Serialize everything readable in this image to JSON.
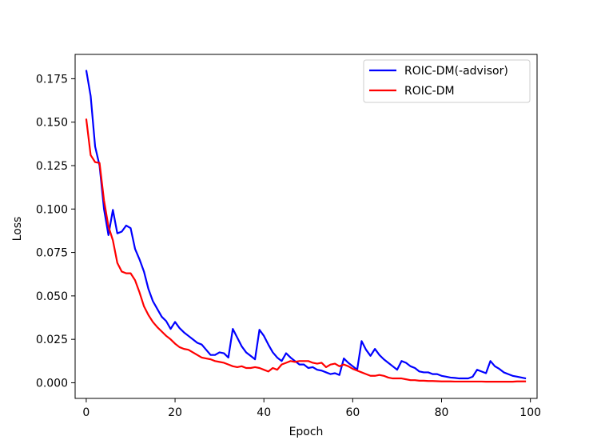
{
  "chart_data": {
    "type": "line",
    "xlabel": "Epoch",
    "ylabel": "Loss",
    "xlim": [
      -2.5,
      101.5
    ],
    "ylim": [
      -0.009,
      0.189
    ],
    "x_ticks": [
      0,
      20,
      40,
      60,
      80,
      100
    ],
    "y_ticks": [
      0.0,
      0.025,
      0.05,
      0.075,
      0.1,
      0.125,
      0.15,
      0.175
    ],
    "x_tick_labels": [
      "0",
      "20",
      "40",
      "60",
      "80",
      "100"
    ],
    "y_tick_labels": [
      "0.000",
      "0.025",
      "0.050",
      "0.075",
      "0.100",
      "0.125",
      "0.150",
      "0.175"
    ],
    "grid": false,
    "legend_position": "top-right",
    "series": [
      {
        "name": "ROIC-DM(-advisor)",
        "color": "#0000ff",
        "x": [
          0,
          1,
          2,
          3,
          4,
          5,
          6,
          7,
          8,
          9,
          10,
          11,
          12,
          13,
          14,
          15,
          16,
          17,
          18,
          19,
          20,
          21,
          22,
          23,
          24,
          25,
          26,
          27,
          28,
          29,
          30,
          31,
          32,
          33,
          34,
          35,
          36,
          37,
          38,
          39,
          40,
          41,
          42,
          43,
          44,
          45,
          46,
          47,
          48,
          49,
          50,
          51,
          52,
          53,
          54,
          55,
          56,
          57,
          58,
          59,
          60,
          61,
          62,
          63,
          64,
          65,
          66,
          67,
          68,
          69,
          70,
          71,
          72,
          73,
          74,
          75,
          76,
          77,
          78,
          79,
          80,
          81,
          82,
          83,
          84,
          85,
          86,
          87,
          88,
          89,
          90,
          91,
          92,
          93,
          94,
          95,
          96,
          97,
          98,
          99
        ],
        "y": [
          0.18,
          0.165,
          0.136,
          0.125,
          0.1,
          0.085,
          0.0995,
          0.086,
          0.087,
          0.0905,
          0.089,
          0.077,
          0.071,
          0.064,
          0.054,
          0.047,
          0.0425,
          0.038,
          0.0355,
          0.031,
          0.035,
          0.0315,
          0.029,
          0.027,
          0.025,
          0.023,
          0.022,
          0.019,
          0.016,
          0.016,
          0.0175,
          0.017,
          0.0145,
          0.031,
          0.026,
          0.021,
          0.0175,
          0.0155,
          0.0135,
          0.0305,
          0.027,
          0.022,
          0.0175,
          0.0145,
          0.0125,
          0.017,
          0.0145,
          0.0125,
          0.0105,
          0.0105,
          0.0085,
          0.009,
          0.0075,
          0.007,
          0.006,
          0.005,
          0.0055,
          0.0045,
          0.014,
          0.0115,
          0.0095,
          0.0075,
          0.024,
          0.019,
          0.0155,
          0.0195,
          0.016,
          0.0135,
          0.0115,
          0.0095,
          0.0075,
          0.0125,
          0.0115,
          0.0095,
          0.0085,
          0.0065,
          0.006,
          0.006,
          0.005,
          0.005,
          0.004,
          0.0035,
          0.003,
          0.0028,
          0.0025,
          0.0025,
          0.0025,
          0.0035,
          0.0075,
          0.0065,
          0.0055,
          0.0125,
          0.0095,
          0.008,
          0.006,
          0.005,
          0.004,
          0.0035,
          0.003,
          0.0025
        ]
      },
      {
        "name": "ROIC-DM",
        "color": "#ff0000",
        "x": [
          0,
          1,
          2,
          3,
          4,
          5,
          6,
          7,
          8,
          9,
          10,
          11,
          12,
          13,
          14,
          15,
          16,
          17,
          18,
          19,
          20,
          21,
          22,
          23,
          24,
          25,
          26,
          27,
          28,
          29,
          30,
          31,
          32,
          33,
          34,
          35,
          36,
          37,
          38,
          39,
          40,
          41,
          42,
          43,
          44,
          45,
          46,
          47,
          48,
          49,
          50,
          51,
          52,
          53,
          54,
          55,
          56,
          57,
          58,
          59,
          60,
          61,
          62,
          63,
          64,
          65,
          66,
          67,
          68,
          69,
          70,
          71,
          72,
          73,
          74,
          75,
          76,
          77,
          78,
          79,
          80,
          81,
          82,
          83,
          84,
          85,
          86,
          87,
          88,
          89,
          90,
          91,
          92,
          93,
          94,
          95,
          96,
          97,
          98,
          99
        ],
        "y": [
          0.152,
          0.131,
          0.127,
          0.1265,
          0.105,
          0.09,
          0.082,
          0.069,
          0.064,
          0.063,
          0.063,
          0.059,
          0.052,
          0.044,
          0.039,
          0.035,
          0.032,
          0.0295,
          0.027,
          0.025,
          0.0225,
          0.0205,
          0.0195,
          0.019,
          0.0175,
          0.016,
          0.0145,
          0.014,
          0.0135,
          0.0125,
          0.012,
          0.0115,
          0.0105,
          0.0095,
          0.009,
          0.0095,
          0.0085,
          0.0085,
          0.009,
          0.0085,
          0.0075,
          0.0065,
          0.0085,
          0.0075,
          0.0105,
          0.0115,
          0.0125,
          0.012,
          0.0125,
          0.0125,
          0.0125,
          0.0115,
          0.011,
          0.0115,
          0.009,
          0.0105,
          0.011,
          0.0095,
          0.0105,
          0.0095,
          0.008,
          0.007,
          0.006,
          0.005,
          0.004,
          0.004,
          0.0045,
          0.004,
          0.003,
          0.0025,
          0.0025,
          0.0025,
          0.002,
          0.0015,
          0.0015,
          0.0012,
          0.0012,
          0.001,
          0.001,
          0.0009,
          0.0008,
          0.0008,
          0.0008,
          0.0007,
          0.0007,
          0.0007,
          0.0007,
          0.0007,
          0.0007,
          0.0007,
          0.0006,
          0.0006,
          0.0006,
          0.0006,
          0.0006,
          0.0006,
          0.0006,
          0.0008,
          0.0008,
          0.0008
        ]
      }
    ]
  }
}
